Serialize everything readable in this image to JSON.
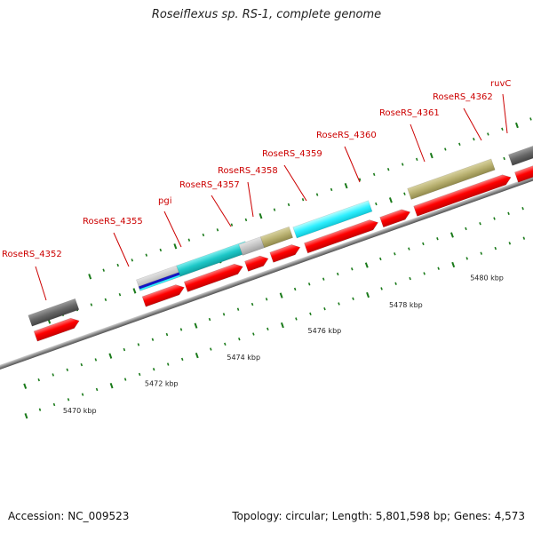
{
  "title": "Roseiflexus sp. RS-1, complete genome",
  "footer": {
    "accession": "Accession: NC_009523",
    "summary": "Topology: circular; Length: 5,801,598 bp; Genes: 4,573"
  },
  "colors": {
    "backbone": "#8c8c8c",
    "cds": "#ff0000",
    "label": "#cc0000",
    "tick": "#1a7a1a",
    "gray_feature": "#666666",
    "olive_feature": "#b8b070",
    "cyan_feature": "#1ec8c8",
    "magenta_feature": "#ff3fa8",
    "blue_feature": "#1414c8"
  },
  "scale_labels": [
    "5470 kbp",
    "5472 kbp",
    "5474 kbp",
    "5476 kbp",
    "5478 kbp",
    "5480 kbp"
  ],
  "gene_labels": [
    "RoseRS_4352",
    "RoseRS_4355",
    "pgi",
    "RoseRS_4357",
    "RoseRS_4358",
    "RoseRS_4359",
    "RoseRS_4360",
    "RoseRS_4361",
    "RoseRS_4362",
    "ruvC"
  ]
}
